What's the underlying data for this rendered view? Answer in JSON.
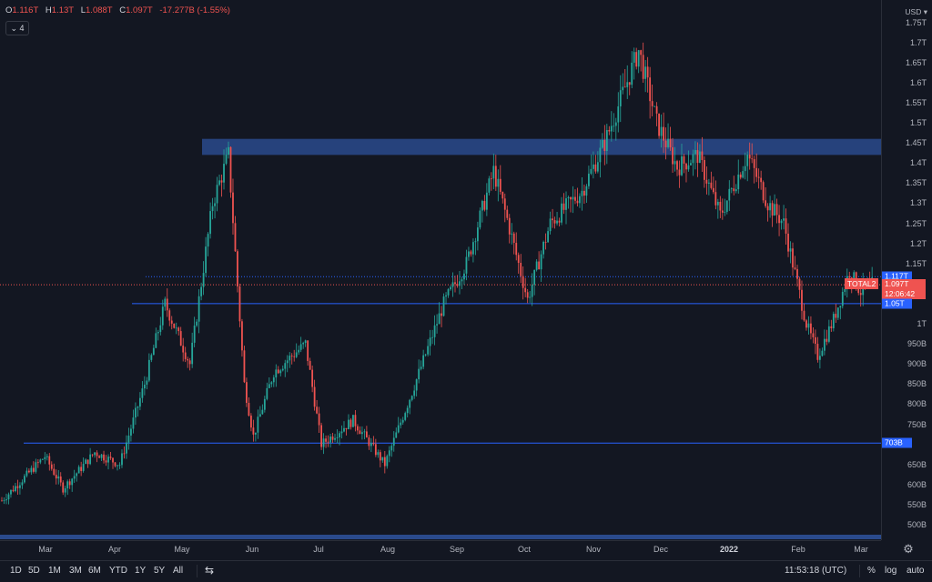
{
  "ohlc": {
    "open_key": "O",
    "open": "1.116T",
    "high_key": "H",
    "high": "1.13T",
    "low_key": "L",
    "low": "1.088T",
    "close_key": "C",
    "close": "1.097T",
    "change": "-17.277B (-1.55%)"
  },
  "indicator_toggle": "4",
  "currency": "USD",
  "symbol": "TOTAL2",
  "price_axis": [
    "1.8T",
    "1.75T",
    "1.7T",
    "1.65T",
    "1.6T",
    "1.55T",
    "1.5T",
    "1.45T",
    "1.4T",
    "1.35T",
    "1.3T",
    "1.25T",
    "1.2T",
    "1.15T",
    "1T",
    "950B",
    "900B",
    "850B",
    "800B",
    "750B",
    "650B",
    "600B",
    "550B",
    "500B"
  ],
  "price_tags": {
    "upper": "1.117T",
    "current_price": "1.097T",
    "countdown": "12:06:42",
    "lower": "1.05T",
    "support": "703B"
  },
  "time_axis": [
    "Mar",
    "Apr",
    "May",
    "Jun",
    "Jul",
    "Aug",
    "Sep",
    "Oct",
    "Nov",
    "Dec",
    "2022",
    "Feb",
    "Mar"
  ],
  "bottom_bar": {
    "ranges": [
      "1D",
      "5D",
      "1M",
      "3M",
      "6M",
      "YTD",
      "1Y",
      "5Y",
      "All"
    ],
    "clock": "11:53:18 (UTC)",
    "percent": "%",
    "log": "log",
    "auto": "auto"
  },
  "colors": {
    "up": "#26a69a",
    "down": "#ef5350",
    "zone": "#2a4a8c",
    "line": "#2962ff",
    "bg": "#131722"
  },
  "chart_data": {
    "type": "candlestick",
    "x_start": "2021-02-01",
    "x_end": "2022-02-20",
    "key_points": [
      {
        "date": "2021-02-01",
        "value": 560
      },
      {
        "date": "2021-02-20",
        "value": 670
      },
      {
        "date": "2021-02-28",
        "value": 590
      },
      {
        "date": "2021-03-14",
        "value": 680
      },
      {
        "date": "2021-03-25",
        "value": 650
      },
      {
        "date": "2021-04-05",
        "value": 850
      },
      {
        "date": "2021-04-14",
        "value": 1050
      },
      {
        "date": "2021-04-25",
        "value": 900
      },
      {
        "date": "2021-05-05",
        "value": 1300
      },
      {
        "date": "2021-05-12",
        "value": 1420
      },
      {
        "date": "2021-05-19",
        "value": 850
      },
      {
        "date": "2021-05-23",
        "value": 720
      },
      {
        "date": "2021-06-01",
        "value": 880
      },
      {
        "date": "2021-06-15",
        "value": 950
      },
      {
        "date": "2021-06-22",
        "value": 700
      },
      {
        "date": "2021-07-06",
        "value": 760
      },
      {
        "date": "2021-07-20",
        "value": 650
      },
      {
        "date": "2021-08-01",
        "value": 830
      },
      {
        "date": "2021-08-15",
        "value": 1050
      },
      {
        "date": "2021-08-25",
        "value": 1150
      },
      {
        "date": "2021-09-06",
        "value": 1380
      },
      {
        "date": "2021-09-12",
        "value": 1260
      },
      {
        "date": "2021-09-21",
        "value": 1060
      },
      {
        "date": "2021-10-01",
        "value": 1250
      },
      {
        "date": "2021-10-15",
        "value": 1330
      },
      {
        "date": "2021-10-25",
        "value": 1450
      },
      {
        "date": "2021-11-09",
        "value": 1680
      },
      {
        "date": "2021-11-17",
        "value": 1500
      },
      {
        "date": "2021-11-26",
        "value": 1390
      },
      {
        "date": "2021-12-05",
        "value": 1420
      },
      {
        "date": "2021-12-15",
        "value": 1270
      },
      {
        "date": "2021-12-27",
        "value": 1420
      },
      {
        "date": "2022-01-05",
        "value": 1300
      },
      {
        "date": "2022-01-12",
        "value": 1250
      },
      {
        "date": "2022-01-22",
        "value": 1000
      },
      {
        "date": "2022-01-27",
        "value": 920
      },
      {
        "date": "2022-02-03",
        "value": 1010
      },
      {
        "date": "2022-02-10",
        "value": 1130
      },
      {
        "date": "2022-02-15",
        "value": 1080
      },
      {
        "date": "2022-02-18",
        "value": 1097
      }
    ],
    "y_unit": "USD billions",
    "ylim": [
      470,
      1800
    ],
    "horizontal_lines": [
      1117,
      1097,
      1050,
      703
    ],
    "resistance_zone": [
      1420,
      1460
    ],
    "bottom_zone": [
      470,
      480
    ]
  }
}
